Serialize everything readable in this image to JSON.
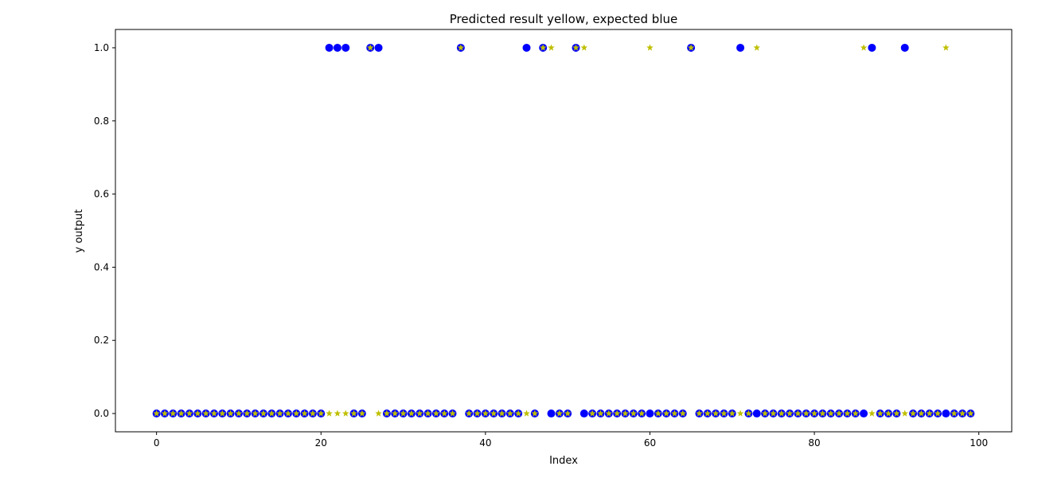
{
  "chart_data": {
    "type": "scatter",
    "title": "Predicted result yellow, expected blue",
    "xlabel": "Index",
    "ylabel": "y output",
    "xlim": [
      -5,
      104
    ],
    "ylim": [
      -0.05,
      1.05
    ],
    "xticks": [
      0,
      20,
      40,
      60,
      80,
      100
    ],
    "yticks": [
      0.0,
      0.2,
      0.4,
      0.6,
      0.8,
      1.0
    ],
    "xtick_labels": [
      "0",
      "20",
      "40",
      "60",
      "80",
      "100"
    ],
    "ytick_labels": [
      "0.0",
      "0.2",
      "0.4",
      "0.6",
      "0.8",
      "1.0"
    ],
    "grid": false,
    "series": [
      {
        "role": "expected",
        "color": "#0000ff",
        "marker": "circle",
        "x": [
          0,
          1,
          2,
          3,
          4,
          5,
          6,
          7,
          8,
          9,
          10,
          11,
          12,
          13,
          14,
          15,
          16,
          17,
          18,
          19,
          20,
          21,
          22,
          23,
          24,
          25,
          26,
          27,
          28,
          29,
          30,
          31,
          32,
          33,
          34,
          35,
          36,
          37,
          38,
          39,
          40,
          41,
          42,
          43,
          44,
          45,
          46,
          47,
          48,
          49,
          50,
          51,
          52,
          53,
          54,
          55,
          56,
          57,
          58,
          59,
          60,
          61,
          62,
          63,
          64,
          65,
          66,
          67,
          68,
          69,
          70,
          71,
          72,
          73,
          74,
          75,
          76,
          77,
          78,
          79,
          80,
          81,
          82,
          83,
          84,
          85,
          86,
          87,
          88,
          89,
          90,
          91,
          92,
          93,
          94,
          95,
          96,
          97,
          98,
          99
        ],
        "y": [
          0,
          0,
          0,
          0,
          0,
          0,
          0,
          0,
          0,
          0,
          0,
          0,
          0,
          0,
          0,
          0,
          0,
          0,
          0,
          0,
          0,
          1,
          1,
          1,
          0,
          0,
          1,
          1,
          0,
          0,
          0,
          0,
          0,
          0,
          0,
          0,
          0,
          1,
          0,
          0,
          0,
          0,
          0,
          0,
          0,
          1,
          0,
          1,
          0,
          0,
          0,
          1,
          0,
          0,
          0,
          0,
          0,
          0,
          0,
          0,
          0,
          0,
          0,
          0,
          0,
          1,
          0,
          0,
          0,
          0,
          0,
          1,
          0,
          0,
          0,
          0,
          0,
          0,
          0,
          0,
          0,
          0,
          0,
          0,
          0,
          0,
          0,
          1,
          0,
          0,
          0,
          1,
          0,
          0,
          0,
          0,
          0,
          0,
          0,
          0
        ]
      },
      {
        "role": "predicted",
        "color": "#bfbf00",
        "marker": "star",
        "x": [
          0,
          1,
          2,
          3,
          4,
          5,
          6,
          7,
          8,
          9,
          10,
          11,
          12,
          13,
          14,
          15,
          16,
          17,
          18,
          19,
          20,
          21,
          22,
          23,
          24,
          25,
          26,
          27,
          28,
          29,
          30,
          31,
          32,
          33,
          34,
          35,
          36,
          37,
          38,
          39,
          40,
          41,
          42,
          43,
          44,
          45,
          46,
          47,
          48,
          49,
          50,
          51,
          52,
          53,
          54,
          55,
          56,
          57,
          58,
          59,
          60,
          61,
          62,
          63,
          64,
          65,
          66,
          67,
          68,
          69,
          70,
          71,
          72,
          73,
          74,
          75,
          76,
          77,
          78,
          79,
          80,
          81,
          82,
          83,
          84,
          85,
          86,
          87,
          88,
          89,
          90,
          91,
          92,
          93,
          94,
          95,
          96,
          97,
          98,
          99
        ],
        "y": [
          0,
          0,
          0,
          0,
          0,
          0,
          0,
          0,
          0,
          0,
          0,
          0,
          0,
          0,
          0,
          0,
          0,
          0,
          0,
          0,
          0,
          0,
          0,
          0,
          0,
          0,
          1,
          0,
          0,
          0,
          0,
          0,
          0,
          0,
          0,
          0,
          0,
          1,
          0,
          0,
          0,
          0,
          0,
          0,
          0,
          0,
          0,
          1,
          1,
          0,
          0,
          1,
          1,
          0,
          0,
          0,
          0,
          0,
          0,
          0,
          1,
          0,
          0,
          0,
          0,
          1,
          0,
          0,
          0,
          0,
          0,
          0,
          0,
          1,
          0,
          0,
          0,
          0,
          0,
          0,
          0,
          0,
          0,
          0,
          0,
          0,
          1,
          0,
          0,
          0,
          0,
          0,
          0,
          0,
          0,
          0,
          1,
          0,
          0,
          0
        ]
      }
    ]
  }
}
